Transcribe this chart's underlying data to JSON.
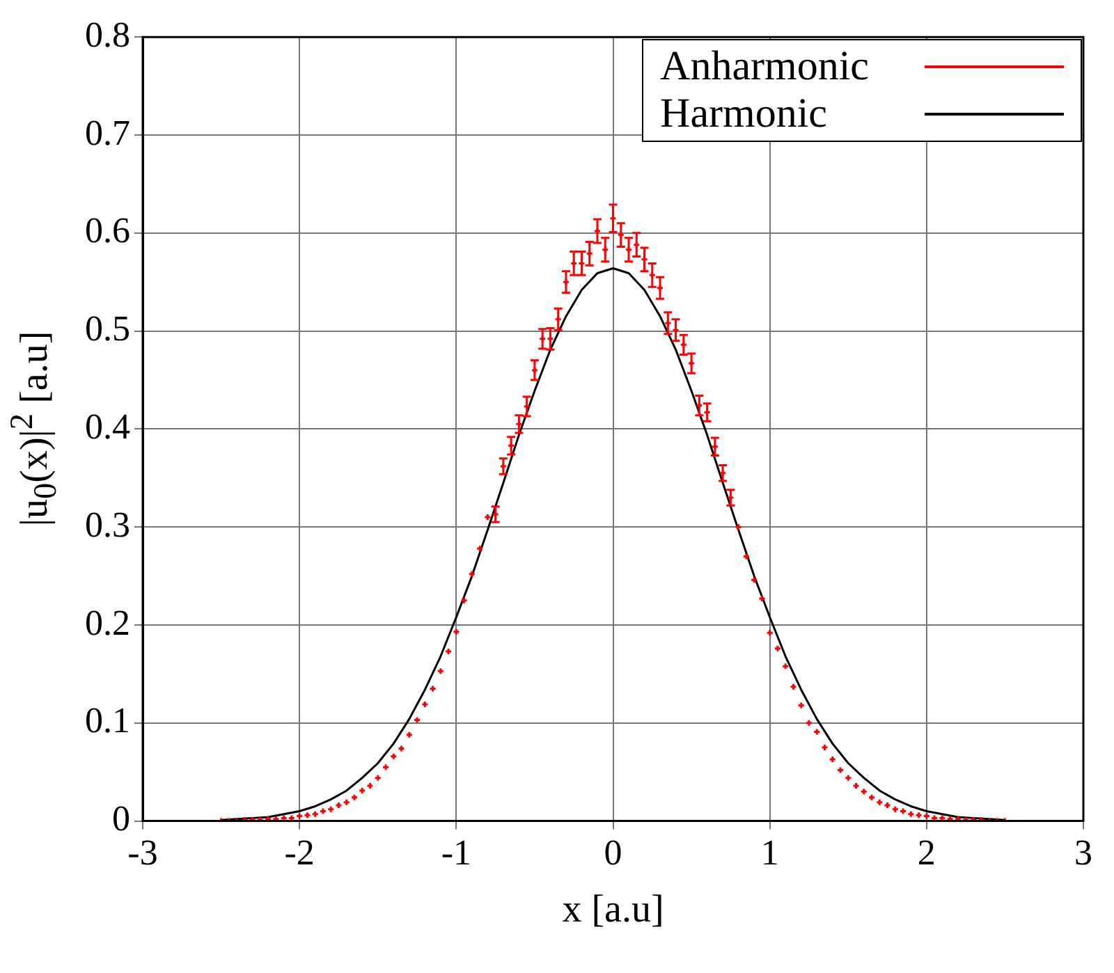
{
  "chart_data": {
    "type": "scatter",
    "xlabel": "x [a.u]",
    "ylabel": "|u$_{0}$(x)|$^{2}$ [a.u]",
    "xlim": [
      -3,
      3
    ],
    "xticks": [
      -3,
      -2,
      -1,
      0,
      1,
      2,
      3
    ],
    "ylim": [
      0,
      0.8
    ],
    "yticks": [
      0,
      0.1,
      0.2,
      0.3,
      0.4,
      0.5,
      0.6,
      0.7,
      0.8
    ],
    "grid": true,
    "legend": "top right",
    "series": [
      {
        "name": "Anharmonic",
        "type": "scatter",
        "color": "#ff0000",
        "marker": "cross",
        "x": [
          -2.5,
          -2.45,
          -2.4,
          -2.35,
          -2.3,
          -2.25,
          -2.2,
          -2.15,
          -2.1,
          -2.05,
          -2.0,
          -1.95,
          -1.9,
          -1.85,
          -1.8,
          -1.75,
          -1.7,
          -1.65,
          -1.6,
          -1.55,
          -1.5,
          -1.45,
          -1.4,
          -1.35,
          -1.3,
          -1.25,
          -1.2,
          -1.15,
          -1.1,
          -1.05,
          -1.0,
          -0.95,
          -0.9,
          -0.85,
          -0.8,
          -0.75,
          -0.7,
          -0.65,
          -0.6,
          -0.55,
          -0.5,
          -0.45,
          -0.4,
          -0.35,
          -0.3,
          -0.25,
          -0.2,
          -0.15,
          -0.1,
          -0.05,
          0,
          0.05,
          0.1,
          0.15,
          0.2,
          0.25,
          0.3,
          0.35,
          0.4,
          0.45,
          0.5,
          0.55,
          0.6,
          0.65,
          0.7,
          0.75,
          0.8,
          0.85,
          0.9,
          0.95,
          1.0,
          1.05,
          1.1,
          1.15,
          1.2,
          1.25,
          1.3,
          1.35,
          1.4,
          1.45,
          1.5,
          1.55,
          1.6,
          1.65,
          1.7,
          1.75,
          1.8,
          1.85,
          1.9,
          1.95,
          2.0,
          2.05,
          2.1,
          2.15,
          2.2,
          2.25,
          2.3,
          2.35,
          2.4,
          2.45,
          2.5
        ],
        "values": [
          0,
          0,
          0,
          0.001,
          0.001,
          0.001,
          0.002,
          0.002,
          0.003,
          0.003,
          0.005,
          0.006,
          0.007,
          0.01,
          0.012,
          0.016,
          0.019,
          0.024,
          0.031,
          0.036,
          0.044,
          0.055,
          0.066,
          0.074,
          0.088,
          0.103,
          0.119,
          0.135,
          0.153,
          0.173,
          0.193,
          0.225,
          0.252,
          0.278,
          0.31,
          0.313,
          0.362,
          0.383,
          0.405,
          0.423,
          0.46,
          0.492,
          0.492,
          0.512,
          0.55,
          0.569,
          0.569,
          0.579,
          0.602,
          0.583,
          0.615,
          0.598,
          0.583,
          0.588,
          0.573,
          0.557,
          0.544,
          0.508,
          0.501,
          0.486,
          0.467,
          0.424,
          0.417,
          0.382,
          0.355,
          0.33,
          0.3,
          0.27,
          0.246,
          0.227,
          0.192,
          0.176,
          0.158,
          0.137,
          0.118,
          0.1,
          0.091,
          0.075,
          0.063,
          0.052,
          0.044,
          0.036,
          0.03,
          0.024,
          0.019,
          0.016,
          0.012,
          0.01,
          0.007,
          0.006,
          0.005,
          0.003,
          0.003,
          0.002,
          0.002,
          0.001,
          0.001,
          0.001,
          0,
          0,
          0
        ],
        "errors": [
          null,
          null,
          null,
          null,
          null,
          null,
          null,
          null,
          null,
          null,
          null,
          null,
          null,
          null,
          null,
          null,
          null,
          null,
          null,
          null,
          null,
          null,
          null,
          null,
          null,
          null,
          null,
          null,
          null,
          null,
          null,
          null,
          null,
          null,
          null,
          0.008,
          0.008,
          0.009,
          0.009,
          0.01,
          0.01,
          0.01,
          0.011,
          0.011,
          0.011,
          0.012,
          0.012,
          0.012,
          0.012,
          0.012,
          0.014,
          0.012,
          0.012,
          0.012,
          0.012,
          0.012,
          0.011,
          0.011,
          0.011,
          0.01,
          0.01,
          0.01,
          0.009,
          0.009,
          0.008,
          0.008,
          null,
          null,
          null,
          null,
          null,
          null,
          null,
          null,
          null,
          null,
          null,
          null,
          null,
          null,
          null,
          null,
          null,
          null,
          null,
          null,
          null,
          null,
          null,
          null,
          null,
          null,
          null,
          null,
          null,
          null,
          null,
          null,
          null,
          null,
          null
        ]
      },
      {
        "name": "Harmonic",
        "type": "line",
        "color": "#000000",
        "x": [
          -2.5,
          -2.4,
          -2.3,
          -2.2,
          -2.1,
          -2.0,
          -1.9,
          -1.8,
          -1.7,
          -1.6,
          -1.5,
          -1.4,
          -1.3,
          -1.2,
          -1.1,
          -1.0,
          -0.9,
          -0.8,
          -0.7,
          -0.6,
          -0.5,
          -0.4,
          -0.3,
          -0.2,
          -0.1,
          0,
          0.1,
          0.2,
          0.3,
          0.4,
          0.5,
          0.6,
          0.7,
          0.8,
          0.9,
          1.0,
          1.1,
          1.2,
          1.3,
          1.4,
          1.5,
          1.6,
          1.7,
          1.8,
          1.9,
          2.0,
          2.1,
          2.2,
          2.3,
          2.4,
          2.5
        ],
        "values": [
          0.001,
          0.002,
          0.003,
          0.004,
          0.007,
          0.01,
          0.015,
          0.022,
          0.031,
          0.044,
          0.059,
          0.079,
          0.104,
          0.134,
          0.168,
          0.208,
          0.25,
          0.297,
          0.345,
          0.394,
          0.439,
          0.481,
          0.515,
          0.542,
          0.559,
          0.564,
          0.559,
          0.542,
          0.515,
          0.481,
          0.439,
          0.394,
          0.345,
          0.297,
          0.25,
          0.208,
          0.168,
          0.134,
          0.104,
          0.079,
          0.059,
          0.044,
          0.031,
          0.022,
          0.015,
          0.01,
          0.007,
          0.004,
          0.003,
          0.002,
          0.001
        ]
      }
    ]
  }
}
